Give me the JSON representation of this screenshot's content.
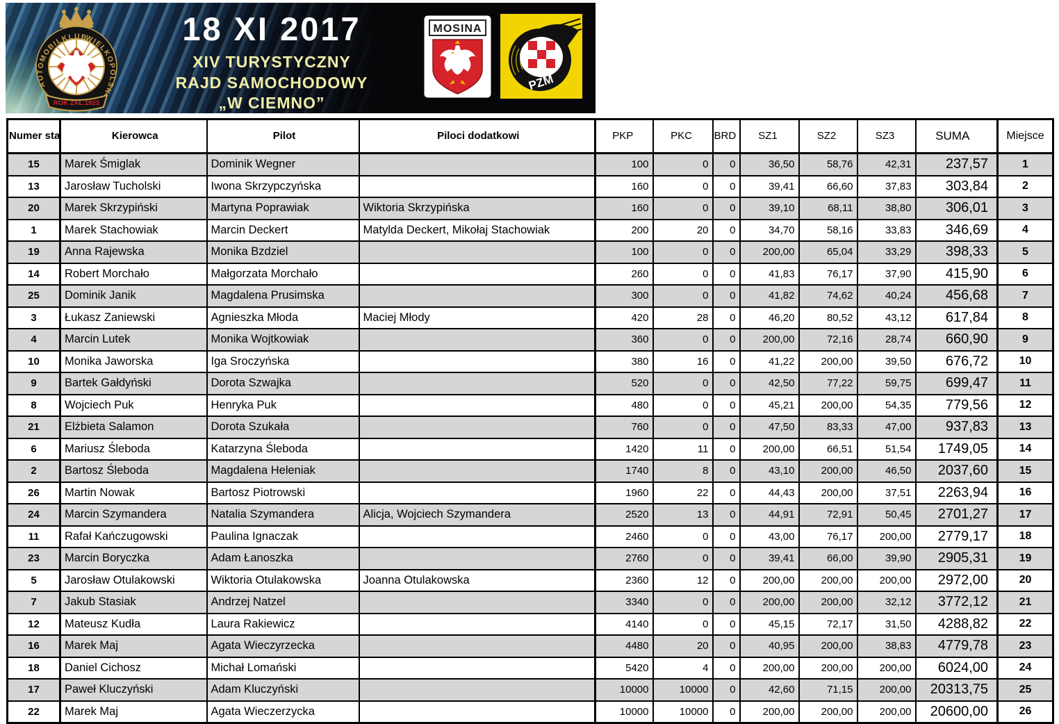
{
  "banner": {
    "date": "18 XI 2017",
    "subtitle": [
      "XIV TURYSTYCZNY",
      "RAJD SAMOCHODOWY",
      "„W CIEMNO”"
    ],
    "club_logo": {
      "ring_text_left": "AUTOMOBILKLUB",
      "ring_text_right": "WIELKOPOLSKI",
      "banner_text": "ROK ZAŁ.1923"
    },
    "mosina": {
      "label": "MOSINA"
    },
    "pzm": {
      "label": "PZM"
    }
  },
  "colors": {
    "row_stripe": "#d6d6d6",
    "subtitle_yellow": "#efeca6",
    "pzm_yellow": "#f2d500",
    "crest_red": "#d6222a",
    "logo_gold": "#c9a14c"
  },
  "table": {
    "headers": {
      "start_number": "Numer startowy",
      "driver": "Kierowca",
      "pilot": "Pilot",
      "extra_pilots": "Piloci dodatkowi",
      "pkp": "PKP",
      "pkc": "PKC",
      "brd": "BRD",
      "sz1": "SZ1",
      "sz2": "SZ2",
      "sz3": "SZ3",
      "suma": "SUMA",
      "place": "Miejsce"
    },
    "rows": [
      {
        "start_number": "15",
        "driver": "Marek Śmiglak",
        "pilot": "Dominik Wegner",
        "extra_pilots": "",
        "pkp": "100",
        "pkc": "0",
        "brd": "0",
        "sz1": "36,50",
        "sz2": "58,76",
        "sz3": "42,31",
        "suma": "237,57",
        "place": "1"
      },
      {
        "start_number": "13",
        "driver": "Jarosław Tucholski",
        "pilot": "Iwona Skrzypczyńska",
        "extra_pilots": "",
        "pkp": "160",
        "pkc": "0",
        "brd": "0",
        "sz1": "39,41",
        "sz2": "66,60",
        "sz3": "37,83",
        "suma": "303,84",
        "place": "2"
      },
      {
        "start_number": "20",
        "driver": "Marek Skrzypiński",
        "pilot": "Martyna Poprawiak",
        "extra_pilots": "Wiktoria Skrzypińska",
        "pkp": "160",
        "pkc": "0",
        "brd": "0",
        "sz1": "39,10",
        "sz2": "68,11",
        "sz3": "38,80",
        "suma": "306,01",
        "place": "3"
      },
      {
        "start_number": "1",
        "driver": "Marek Stachowiak",
        "pilot": "Marcin Deckert",
        "extra_pilots": " Matylda Deckert, Mikołaj Stachowiak",
        "pkp": "200",
        "pkc": "20",
        "brd": "0",
        "sz1": "34,70",
        "sz2": "58,16",
        "sz3": "33,83",
        "suma": "346,69",
        "place": "4"
      },
      {
        "start_number": "19",
        "driver": "Anna Rajewska",
        "pilot": "Monika Bzdziel",
        "extra_pilots": "",
        "pkp": "100",
        "pkc": "0",
        "brd": "0",
        "sz1": "200,00",
        "sz2": "65,04",
        "sz3": "33,29",
        "suma": "398,33",
        "place": "5"
      },
      {
        "start_number": "14",
        "driver": "Robert Morchało",
        "pilot": "Małgorzata Morchało",
        "extra_pilots": "",
        "pkp": "260",
        "pkc": "0",
        "brd": "0",
        "sz1": "41,83",
        "sz2": "76,17",
        "sz3": "37,90",
        "suma": "415,90",
        "place": "6"
      },
      {
        "start_number": "25",
        "driver": "Dominik Janik",
        "pilot": "Magdalena Prusimska",
        "extra_pilots": "",
        "pkp": "300",
        "pkc": "0",
        "brd": "0",
        "sz1": "41,82",
        "sz2": "74,62",
        "sz3": "40,24",
        "suma": "456,68",
        "place": "7"
      },
      {
        "start_number": "3",
        "driver": "Łukasz Zaniewski",
        "pilot": "Agnieszka Młoda",
        "extra_pilots": "Maciej Młody",
        "pkp": "420",
        "pkc": "28",
        "brd": "0",
        "sz1": "46,20",
        "sz2": "80,52",
        "sz3": "43,12",
        "suma": "617,84",
        "place": "8"
      },
      {
        "start_number": "4",
        "driver": "Marcin Lutek",
        "pilot": " Monika Wojtkowiak",
        "extra_pilots": "",
        "pkp": "360",
        "pkc": "0",
        "brd": "0",
        "sz1": "200,00",
        "sz2": "72,16",
        "sz3": "28,74",
        "suma": "660,90",
        "place": "9"
      },
      {
        "start_number": "10",
        "driver": "Monika Jaworska",
        "pilot": "Iga Sroczyńska",
        "extra_pilots": "",
        "pkp": "380",
        "pkc": "16",
        "brd": "0",
        "sz1": "41,22",
        "sz2": "200,00",
        "sz3": "39,50",
        "suma": "676,72",
        "place": "10"
      },
      {
        "start_number": "9",
        "driver": "Bartek Gałdyński",
        "pilot": "Dorota Szwajka",
        "extra_pilots": "",
        "pkp": "520",
        "pkc": "0",
        "brd": "0",
        "sz1": "42,50",
        "sz2": "77,22",
        "sz3": "59,75",
        "suma": "699,47",
        "place": "11"
      },
      {
        "start_number": "8",
        "driver": "Wojciech Puk",
        "pilot": "Henryka Puk",
        "extra_pilots": "",
        "pkp": "480",
        "pkc": "0",
        "brd": "0",
        "sz1": "45,21",
        "sz2": "200,00",
        "sz3": "54,35",
        "suma": "779,56",
        "place": "12"
      },
      {
        "start_number": "21",
        "driver": "Elżbieta Salamon",
        "pilot": "Dorota Szukała",
        "extra_pilots": "",
        "pkp": "760",
        "pkc": "0",
        "brd": "0",
        "sz1": "47,50",
        "sz2": "83,33",
        "sz3": "47,00",
        "suma": "937,83",
        "place": "13"
      },
      {
        "start_number": "6",
        "driver": "Mariusz Śleboda",
        "pilot": "Katarzyna Śleboda",
        "extra_pilots": "",
        "pkp": "1420",
        "pkc": "11",
        "brd": "0",
        "sz1": "200,00",
        "sz2": "66,51",
        "sz3": "51,54",
        "suma": "1749,05",
        "place": "14"
      },
      {
        "start_number": "2",
        "driver": "Bartosz Śleboda",
        "pilot": "Magdalena Heleniak",
        "extra_pilots": "",
        "pkp": "1740",
        "pkc": "8",
        "brd": "0",
        "sz1": "43,10",
        "sz2": "200,00",
        "sz3": "46,50",
        "suma": "2037,60",
        "place": "15"
      },
      {
        "start_number": "26",
        "driver": "Martin Nowak",
        "pilot": "Bartosz Piotrowski",
        "extra_pilots": "",
        "pkp": "1960",
        "pkc": "22",
        "brd": "0",
        "sz1": "44,43",
        "sz2": "200,00",
        "sz3": "37,51",
        "suma": "2263,94",
        "place": "16"
      },
      {
        "start_number": "24",
        "driver": "Marcin Szymandera",
        "pilot": "Natalia Szymandera",
        "extra_pilots": "Alicja, Wojciech Szymandera",
        "pkp": "2520",
        "pkc": "13",
        "brd": "0",
        "sz1": "44,91",
        "sz2": "72,91",
        "sz3": "50,45",
        "suma": "2701,27",
        "place": "17"
      },
      {
        "start_number": "11",
        "driver": "Rafał Kańczugowski",
        "pilot": "Paulina Ignaczak",
        "extra_pilots": "",
        "pkp": "2460",
        "pkc": "0",
        "brd": "0",
        "sz1": "43,00",
        "sz2": "76,17",
        "sz3": "200,00",
        "suma": "2779,17",
        "place": "18"
      },
      {
        "start_number": "23",
        "driver": "Marcin Boryczka",
        "pilot": "Adam Łanoszka",
        "extra_pilots": "",
        "pkp": "2760",
        "pkc": "0",
        "brd": "0",
        "sz1": "39,41",
        "sz2": "66,00",
        "sz3": "39,90",
        "suma": "2905,31",
        "place": "19"
      },
      {
        "start_number": "5",
        "driver": "Jarosław Otulakowski",
        "pilot": "Wiktoria Otulakowska",
        "extra_pilots": "Joanna Otulakowska",
        "pkp": "2360",
        "pkc": "12",
        "brd": "0",
        "sz1": "200,00",
        "sz2": "200,00",
        "sz3": "200,00",
        "suma": "2972,00",
        "place": "20"
      },
      {
        "start_number": "7",
        "driver": "Jakub Stasiak",
        "pilot": "Andrzej Natzel",
        "extra_pilots": "",
        "pkp": "3340",
        "pkc": "0",
        "brd": "0",
        "sz1": "200,00",
        "sz2": "200,00",
        "sz3": "32,12",
        "suma": "3772,12",
        "place": "21"
      },
      {
        "start_number": "12",
        "driver": "Mateusz Kudła",
        "pilot": "Laura Rakiewicz",
        "extra_pilots": "",
        "pkp": "4140",
        "pkc": "0",
        "brd": "0",
        "sz1": "45,15",
        "sz2": "72,17",
        "sz3": "31,50",
        "suma": "4288,82",
        "place": "22"
      },
      {
        "start_number": "16",
        "driver": "Marek Maj",
        "pilot": "Agata Wieczyrzecka",
        "extra_pilots": "",
        "pkp": "4480",
        "pkc": "20",
        "brd": "0",
        "sz1": "40,95",
        "sz2": "200,00",
        "sz3": "38,83",
        "suma": "4779,78",
        "place": "23"
      },
      {
        "start_number": "18",
        "driver": "Daniel Cichosz",
        "pilot": "Michał Lomański",
        "extra_pilots": "",
        "pkp": "5420",
        "pkc": "4",
        "brd": "0",
        "sz1": "200,00",
        "sz2": "200,00",
        "sz3": "200,00",
        "suma": "6024,00",
        "place": "24"
      },
      {
        "start_number": "17",
        "driver": "Paweł Kluczyński",
        "pilot": "Adam Kluczyński",
        "extra_pilots": "",
        "pkp": "10000",
        "pkc": "10000",
        "brd": "0",
        "sz1": "42,60",
        "sz2": "71,15",
        "sz3": "200,00",
        "suma": "20313,75",
        "place": "25"
      },
      {
        "start_number": "22",
        "driver": "Marek Maj",
        "pilot": "Agata Wieczerzycka",
        "extra_pilots": "",
        "pkp": "10000",
        "pkc": "10000",
        "brd": "0",
        "sz1": "200,00",
        "sz2": "200,00",
        "sz3": "200,00",
        "suma": "20600,00",
        "place": "26"
      }
    ]
  }
}
